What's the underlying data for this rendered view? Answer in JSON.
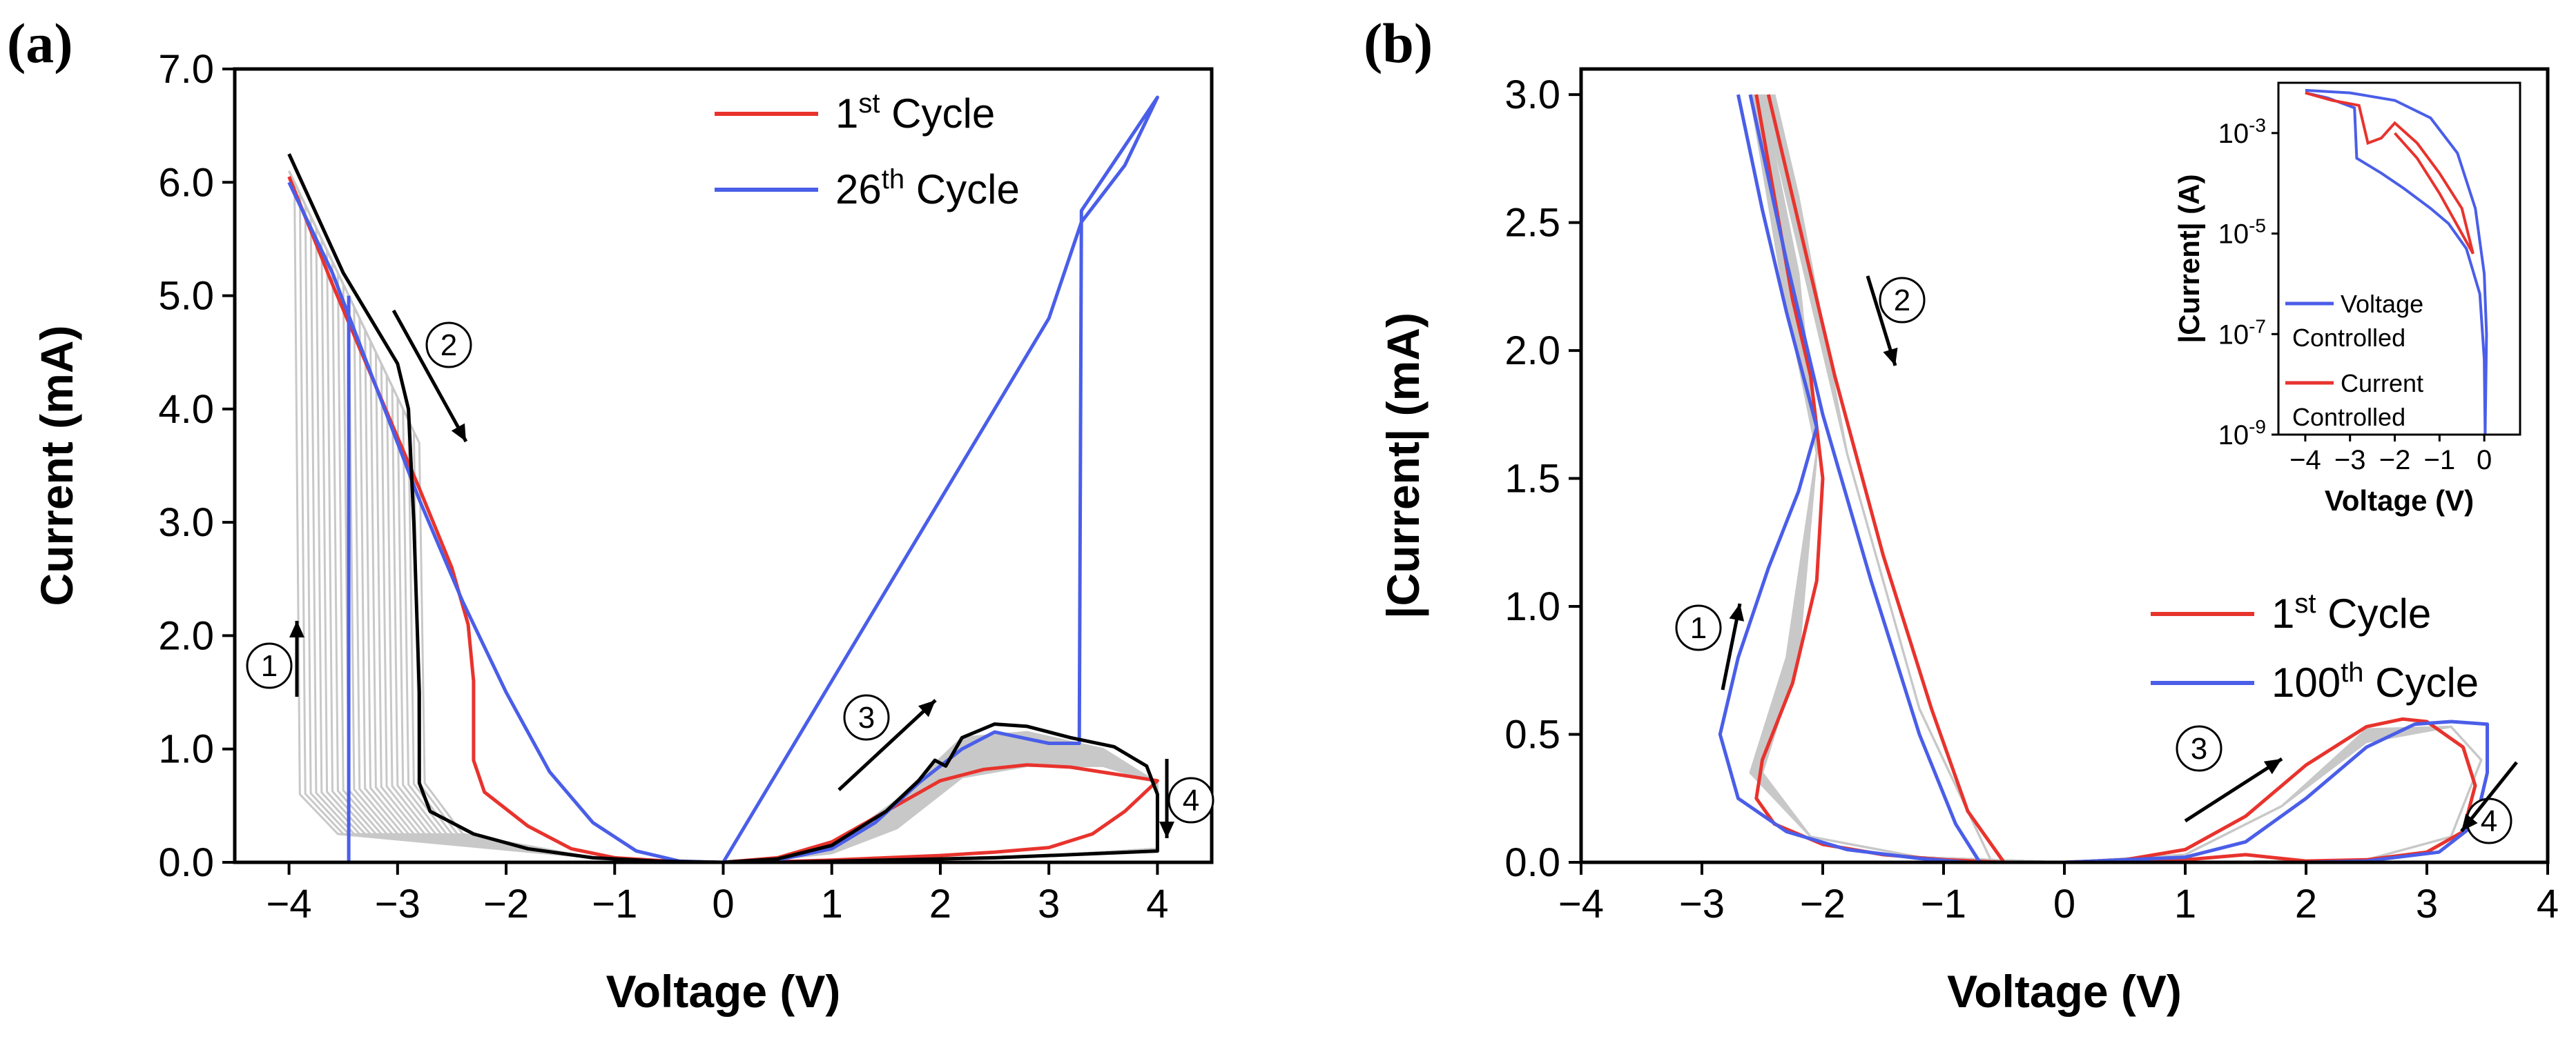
{
  "figure": {
    "panel_a_label": "(a)",
    "panel_b_label": "(b)"
  },
  "colors": {
    "red": "#e8332d",
    "blue": "#4a5ee8",
    "black": "#000000",
    "gray": "#c8c8c8"
  },
  "chart_data": [
    {
      "id": "a",
      "type": "line",
      "xlabel": "Voltage (V)",
      "ylabel": "Current (mA)",
      "xlim": [
        -4.5,
        4.5
      ],
      "ylim": [
        0,
        7
      ],
      "xticks": [
        -4,
        -3,
        -2,
        -1,
        0,
        1,
        2,
        3,
        4
      ],
      "xtick_labels": [
        "−4",
        "−3",
        "−2",
        "−1",
        "0",
        "1",
        "2",
        "3",
        "4"
      ],
      "yticks": [
        0,
        1,
        2,
        3,
        4,
        5,
        6,
        7
      ],
      "ytick_labels": [
        "0.0",
        "1.0",
        "2.0",
        "3.0",
        "4.0",
        "5.0",
        "6.0",
        "7.0"
      ],
      "legend": [
        {
          "base": "1",
          "sup": "st",
          "rest": " Cycle",
          "color": "red"
        },
        {
          "base": "26",
          "sup": "th",
          "rest": " Cycle",
          "color": "blue"
        }
      ],
      "annotations": [
        "1",
        "2",
        "3",
        "4"
      ],
      "series": [
        {
          "name": "1st Cycle",
          "color": "red",
          "points": [
            [
              -4,
              6.05
            ],
            [
              -3.6,
              5.1
            ],
            [
              -3.2,
              4.2
            ],
            [
              -2.8,
              3.3
            ],
            [
              -2.5,
              2.6
            ],
            [
              -2.35,
              2.1
            ],
            [
              -2.3,
              1.6
            ],
            [
              -2.3,
              0.9
            ],
            [
              -2.2,
              0.62
            ],
            [
              -1.8,
              0.32
            ],
            [
              -1.4,
              0.12
            ],
            [
              -1,
              0.04
            ],
            [
              -0.5,
              0.01
            ],
            [
              0,
              0
            ],
            [
              0.5,
              0.005
            ],
            [
              1,
              0.02
            ],
            [
              1.5,
              0.04
            ],
            [
              2,
              0.06
            ],
            [
              2.5,
              0.09
            ],
            [
              3,
              0.13
            ],
            [
              3.4,
              0.25
            ],
            [
              3.7,
              0.45
            ],
            [
              4,
              0.72
            ],
            [
              3.6,
              0.78
            ],
            [
              3.2,
              0.84
            ],
            [
              2.8,
              0.86
            ],
            [
              2.4,
              0.82
            ],
            [
              2,
              0.72
            ],
            [
              1.5,
              0.45
            ],
            [
              1,
              0.18
            ],
            [
              0.5,
              0.04
            ],
            [
              0,
              0
            ]
          ]
        },
        {
          "name": "26th Cycle",
          "color": "blue",
          "points": [
            [
              -4,
              6.0
            ],
            [
              -3.6,
              5.2
            ],
            [
              -3.2,
              4.2
            ],
            [
              -2.8,
              3.2
            ],
            [
              -2.4,
              2.3
            ],
            [
              -2.0,
              1.5
            ],
            [
              -1.6,
              0.8
            ],
            [
              -1.2,
              0.35
            ],
            [
              -0.8,
              0.1
            ],
            [
              -0.4,
              0.01
            ],
            [
              0,
              0
            ],
            [
              0.5,
              0.8
            ],
            [
              1,
              1.6
            ],
            [
              1.5,
              2.4
            ],
            [
              2,
              3.2
            ],
            [
              2.5,
              4.0
            ],
            [
              3,
              4.8
            ],
            [
              3.3,
              5.65
            ],
            [
              3.5,
              5.9
            ],
            [
              3.7,
              6.15
            ],
            [
              4,
              6.75
            ],
            [
              3.3,
              5.75
            ],
            [
              3.28,
              1.05
            ],
            [
              3,
              1.05
            ],
            [
              2.5,
              1.15
            ],
            [
              2.2,
              1.0
            ],
            [
              1.8,
              0.7
            ],
            [
              1.4,
              0.35
            ],
            [
              1,
              0.12
            ],
            [
              0.5,
              0.02
            ],
            [
              0,
              0
            ],
            [
              -0.5,
              0
            ],
            [
              -3.45,
              0
            ],
            [
              -3.45,
              5.0
            ]
          ]
        },
        {
          "name": "Black envelope",
          "color": "black",
          "points": [
            [
              -4,
              6.25
            ],
            [
              -3.5,
              5.2
            ],
            [
              -3.0,
              4.4
            ],
            [
              -2.9,
              4.0
            ],
            [
              -2.85,
              3.0
            ],
            [
              -2.8,
              1.5
            ],
            [
              -2.8,
              0.7
            ],
            [
              -2.7,
              0.45
            ],
            [
              -2.3,
              0.25
            ],
            [
              -1.8,
              0.12
            ],
            [
              -1.2,
              0.04
            ],
            [
              -0.6,
              0.01
            ],
            [
              0,
              0
            ],
            [
              0.5,
              0.03
            ],
            [
              1,
              0.15
            ],
            [
              1.5,
              0.45
            ],
            [
              1.8,
              0.72
            ],
            [
              1.95,
              0.9
            ],
            [
              2.05,
              0.85
            ],
            [
              2.2,
              1.1
            ],
            [
              2.5,
              1.22
            ],
            [
              2.8,
              1.2
            ],
            [
              3.2,
              1.1
            ],
            [
              3.6,
              1.02
            ],
            [
              3.9,
              0.85
            ],
            [
              4,
              0.6
            ],
            [
              4,
              0.1
            ],
            [
              3.5,
              0.08
            ],
            [
              2.5,
              0.04
            ],
            [
              1.5,
              0.02
            ],
            [
              0.5,
              0
            ],
            [
              0,
              0
            ]
          ]
        }
      ]
    },
    {
      "id": "b",
      "type": "line",
      "xlabel": "Voltage (V)",
      "ylabel": "|Current| (mA)",
      "xlim": [
        -4,
        4
      ],
      "ylim": [
        0,
        3.1
      ],
      "xticks": [
        -4,
        -3,
        -2,
        -1,
        0,
        1,
        2,
        3,
        4
      ],
      "xtick_labels": [
        "−4",
        "−3",
        "−2",
        "−1",
        "0",
        "1",
        "2",
        "3",
        "4"
      ],
      "yticks": [
        0,
        0.5,
        1,
        1.5,
        2,
        2.5,
        3
      ],
      "ytick_labels": [
        "0.0",
        "0.5",
        "1.0",
        "1.5",
        "2.0",
        "2.5",
        "3.0"
      ],
      "legend": [
        {
          "base": "1",
          "sup": "st",
          "rest": " Cycle",
          "color": "red"
        },
        {
          "base": "100",
          "sup": "th",
          "rest": " Cycle",
          "color": "blue"
        }
      ],
      "annotations": [
        "1",
        "2",
        "3",
        "4"
      ],
      "series": [
        {
          "name": "1st Cycle",
          "color": "red",
          "points": [
            [
              -2.55,
              3.0
            ],
            [
              -2.4,
              2.6
            ],
            [
              -2.25,
              2.2
            ],
            [
              -2.1,
              1.9
            ],
            [
              -2.0,
              1.5
            ],
            [
              -2.05,
              1.1
            ],
            [
              -2.25,
              0.7
            ],
            [
              -2.5,
              0.4
            ],
            [
              -2.55,
              0.25
            ],
            [
              -2.4,
              0.15
            ],
            [
              -2.0,
              0.07
            ],
            [
              -1.5,
              0.03
            ],
            [
              -1,
              0.01
            ],
            [
              -0.5,
              0
            ],
            [
              0,
              0
            ],
            [
              0.5,
              0.01
            ],
            [
              1,
              0.05
            ],
            [
              1.5,
              0.18
            ],
            [
              2,
              0.38
            ],
            [
              2.5,
              0.53
            ],
            [
              2.8,
              0.56
            ],
            [
              3.0,
              0.55
            ],
            [
              3.3,
              0.45
            ],
            [
              3.4,
              0.3
            ],
            [
              3.3,
              0.12
            ],
            [
              3.0,
              0.04
            ],
            [
              2.5,
              0.01
            ],
            [
              2,
              0.005
            ],
            [
              1.5,
              0.03
            ],
            [
              1,
              0.01
            ],
            [
              0.5,
              0
            ],
            [
              0,
              0
            ],
            [
              -0.5,
              0
            ],
            [
              -0.8,
              0.2
            ],
            [
              -1.1,
              0.6
            ],
            [
              -1.5,
              1.2
            ],
            [
              -1.9,
              1.9
            ],
            [
              -2.2,
              2.5
            ],
            [
              -2.45,
              3.0
            ]
          ]
        },
        {
          "name": "100th Cycle",
          "color": "blue",
          "points": [
            [
              -2.7,
              3.0
            ],
            [
              -2.5,
              2.55
            ],
            [
              -2.3,
              2.15
            ],
            [
              -2.05,
              1.7
            ],
            [
              -2.2,
              1.45
            ],
            [
              -2.45,
              1.15
            ],
            [
              -2.7,
              0.8
            ],
            [
              -2.85,
              0.5
            ],
            [
              -2.7,
              0.25
            ],
            [
              -2.3,
              0.12
            ],
            [
              -1.8,
              0.05
            ],
            [
              -1.2,
              0.015
            ],
            [
              -0.8,
              0
            ],
            [
              0,
              0
            ],
            [
              1,
              0.02
            ],
            [
              1.5,
              0.08
            ],
            [
              2,
              0.25
            ],
            [
              2.5,
              0.45
            ],
            [
              2.9,
              0.54
            ],
            [
              3.2,
              0.55
            ],
            [
              3.5,
              0.54
            ],
            [
              3.5,
              0.35
            ],
            [
              3.4,
              0.15
            ],
            [
              3.1,
              0.04
            ],
            [
              2.5,
              0.005
            ],
            [
              2,
              0
            ],
            [
              0,
              0
            ],
            [
              -0.7,
              0
            ],
            [
              -0.9,
              0.15
            ],
            [
              -1.2,
              0.5
            ],
            [
              -1.6,
              1.1
            ],
            [
              -2.0,
              1.75
            ],
            [
              -2.3,
              2.35
            ],
            [
              -2.6,
              3.0
            ]
          ]
        }
      ],
      "inset": {
        "xlabel": "Voltage (V)",
        "ylabel": "|Current| (A)",
        "xlim": [
          -4.6,
          0.8
        ],
        "ylog_min": -9,
        "ylog_max": -2,
        "xticks": [
          -4,
          -3,
          -2,
          -1,
          0
        ],
        "xtick_labels": [
          "−4",
          "−3",
          "−2",
          "−1",
          "0"
        ],
        "yticks_exp": [
          -3,
          -5,
          -7,
          -9
        ],
        "ytick_base": "10",
        "ytick_exps": [
          "-3",
          "-5",
          "-7",
          "-9"
        ],
        "legend": [
          {
            "line1": "Voltage",
            "line2": "Controlled",
            "color": "blue"
          },
          {
            "line1": "Current",
            "line2": "Controlled",
            "color": "red"
          }
        ],
        "series": [
          {
            "name": "Voltage Controlled",
            "color": "blue",
            "points": [
              [
                -4,
                -2.2
              ],
              [
                -3.5,
                -2.3
              ],
              [
                -2.9,
                -2.5
              ],
              [
                -2.85,
                -3.5
              ],
              [
                -2.3,
                -3.8
              ],
              [
                -1.8,
                -4.1
              ],
              [
                -1.2,
                -4.5
              ],
              [
                -0.8,
                -4.8
              ],
              [
                -0.4,
                -5.3
              ],
              [
                -0.1,
                -6.2
              ],
              [
                0,
                -7.5
              ],
              [
                0.02,
                -9
              ],
              [
                0.05,
                -7
              ],
              [
                0,
                -5.8
              ],
              [
                -0.2,
                -4.5
              ],
              [
                -0.6,
                -3.4
              ],
              [
                -1.2,
                -2.7
              ],
              [
                -2,
                -2.35
              ],
              [
                -3,
                -2.2
              ],
              [
                -4,
                -2.15
              ]
            ]
          },
          {
            "name": "Current Controlled",
            "color": "red",
            "points": [
              [
                -4,
                -2.2
              ],
              [
                -3.4,
                -2.35
              ],
              [
                -2.8,
                -2.45
              ],
              [
                -2.6,
                -3.2
              ],
              [
                -2.3,
                -3.1
              ],
              [
                -2.0,
                -2.8
              ],
              [
                -1.5,
                -3.2
              ],
              [
                -1.0,
                -3.8
              ],
              [
                -0.5,
                -4.5
              ],
              [
                -0.25,
                -5.4
              ],
              [
                -0.5,
                -5.0
              ],
              [
                -1.0,
                -4.2
              ],
              [
                -1.5,
                -3.5
              ],
              [
                -2.0,
                -3.0
              ]
            ]
          }
        ]
      }
    }
  ]
}
